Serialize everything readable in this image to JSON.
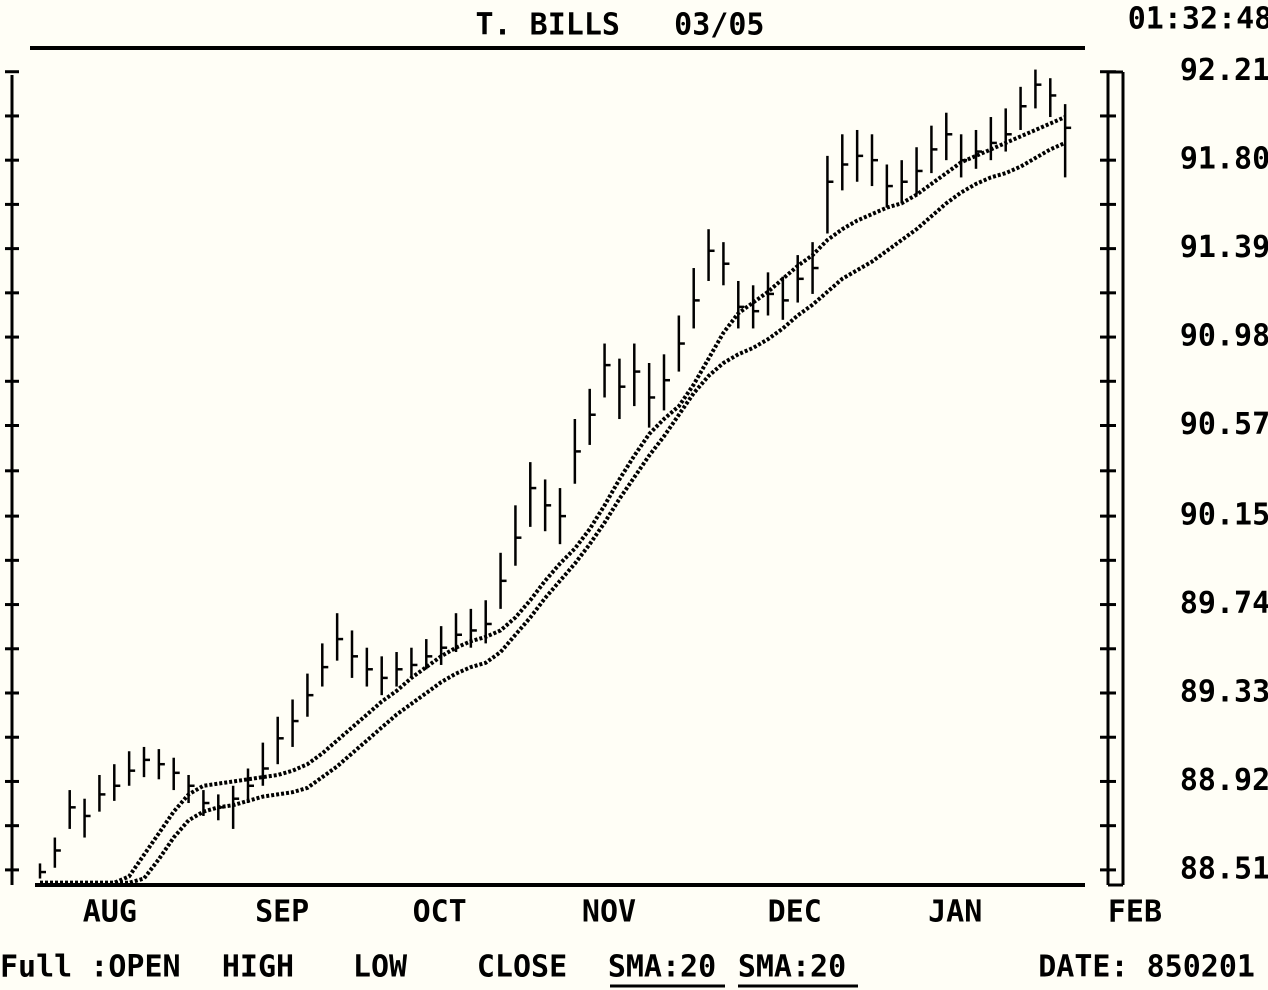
{
  "chart_data": {
    "type": "ohlc",
    "title": "T. BILLS   03/05",
    "time": "01:32:48",
    "footer_label": "Full :OPEN",
    "date_label": "DATE: 850201",
    "color": "#000000",
    "categories": [
      null,
      null,
      null,
      null,
      null,
      null,
      null,
      null,
      null,
      null,
      null,
      null,
      null,
      null,
      null,
      null,
      null,
      null,
      null,
      null,
      null,
      null,
      null,
      null,
      null,
      null,
      null,
      null,
      null,
      null,
      null,
      null,
      null,
      null,
      null,
      null,
      null,
      null,
      null,
      null,
      null,
      null,
      null,
      null,
      null,
      null,
      null,
      null,
      null,
      null,
      null,
      null,
      null,
      null,
      null,
      null,
      null,
      null,
      null,
      null,
      null,
      null,
      null,
      null,
      null,
      null,
      null,
      null,
      null,
      null
    ],
    "xlim": [
      0,
      70
    ],
    "xticks": [
      {
        "value": 4.7,
        "label": "AUG"
      },
      {
        "value": 16.3,
        "label": "SEP"
      },
      {
        "value": 26.9,
        "label": "OCT"
      },
      {
        "value": 38.3,
        "label": "NOV"
      },
      {
        "value": 50.8,
        "label": "DEC"
      },
      {
        "value": 61.6,
        "label": "JAN"
      },
      {
        "value": 73.7,
        "label": "FEB"
      }
    ],
    "ylim": [
      88.44,
      92.32
    ],
    "yticks": [
      88.51,
      88.92,
      89.33,
      89.74,
      90.15,
      90.57,
      90.98,
      91.39,
      {
        "value": 91.8,
        "label": "91.80"
      },
      92.21
    ],
    "series": [
      {
        "name": "HIGH",
        "values": [
          88.54,
          88.66,
          88.88,
          88.84,
          88.95,
          89.0,
          89.06,
          89.08,
          89.07,
          89.03,
          88.95,
          88.88,
          88.86,
          88.9,
          88.98,
          89.1,
          89.22,
          89.3,
          89.42,
          89.56,
          89.7,
          89.62,
          89.54,
          89.5,
          89.52,
          89.54,
          89.58,
          89.64,
          89.7,
          89.72,
          89.76,
          89.98,
          90.2,
          90.4,
          90.32,
          90.28,
          90.6,
          90.74,
          90.95,
          90.88,
          90.95,
          90.86,
          90.9,
          91.08,
          91.3,
          91.48,
          91.42,
          91.24,
          91.22,
          91.28,
          91.26,
          91.36,
          91.42,
          91.82,
          91.92,
          91.94,
          91.92,
          91.78,
          91.8,
          91.86,
          91.96,
          92.02,
          91.92,
          91.94,
          92.0,
          92.04,
          92.14,
          92.22,
          92.18,
          92.06
        ]
      },
      {
        "name": "LOW",
        "values": [
          88.47,
          88.52,
          88.7,
          88.66,
          88.78,
          88.83,
          88.9,
          88.94,
          88.93,
          88.88,
          88.82,
          88.76,
          88.74,
          88.7,
          88.82,
          88.9,
          89.0,
          89.08,
          89.22,
          89.36,
          89.48,
          89.4,
          89.36,
          89.32,
          89.36,
          89.4,
          89.44,
          89.46,
          89.52,
          89.54,
          89.56,
          89.72,
          89.92,
          90.1,
          90.08,
          90.02,
          90.3,
          90.48,
          90.7,
          90.6,
          90.66,
          90.56,
          90.64,
          90.82,
          91.02,
          91.24,
          91.22,
          91.02,
          91.02,
          91.08,
          91.06,
          91.14,
          91.18,
          91.46,
          91.66,
          91.7,
          91.68,
          91.58,
          91.6,
          91.64,
          91.74,
          91.8,
          91.72,
          91.76,
          91.8,
          91.84,
          91.94,
          92.04,
          92.0,
          91.72
        ]
      },
      {
        "name": "CLOSE",
        "values": [
          88.5,
          88.6,
          88.8,
          88.76,
          88.86,
          88.9,
          88.97,
          89.02,
          89.0,
          88.96,
          88.9,
          88.82,
          88.8,
          88.84,
          88.9,
          88.98,
          89.12,
          89.2,
          89.32,
          89.45,
          89.58,
          89.5,
          89.44,
          89.4,
          89.44,
          89.46,
          89.5,
          89.54,
          89.6,
          89.62,
          89.65,
          89.85,
          90.05,
          90.28,
          90.2,
          90.15,
          90.45,
          90.62,
          90.85,
          90.75,
          90.82,
          90.7,
          90.78,
          90.95,
          91.15,
          91.38,
          91.32,
          91.12,
          91.1,
          91.18,
          91.15,
          91.25,
          91.3,
          91.7,
          91.78,
          91.82,
          91.8,
          91.68,
          91.7,
          91.75,
          91.85,
          91.92,
          91.8,
          91.84,
          91.88,
          91.92,
          92.05,
          92.15,
          92.1,
          91.95
        ]
      },
      {
        "name": "SMA:20",
        "values": [
          88.45,
          88.45,
          88.45,
          88.45,
          88.45,
          88.45,
          88.48,
          88.58,
          88.68,
          88.78,
          88.86,
          88.9,
          88.91,
          88.92,
          88.93,
          88.94,
          88.95,
          88.97,
          89.0,
          89.05,
          89.11,
          89.17,
          89.23,
          89.29,
          89.34,
          89.4,
          89.45,
          89.5,
          89.54,
          89.57,
          89.59,
          89.62,
          89.68,
          89.76,
          89.85,
          89.93,
          90.0,
          90.09,
          90.2,
          90.32,
          90.43,
          90.53,
          90.6,
          90.66,
          90.76,
          90.88,
          91.0,
          91.09,
          91.14,
          91.19,
          91.25,
          91.31,
          91.36,
          91.43,
          91.48,
          91.52,
          91.55,
          91.58,
          91.6,
          91.64,
          91.69,
          91.74,
          91.79,
          91.82,
          91.85,
          91.88,
          91.91,
          91.94,
          91.97,
          92.0
        ]
      },
      {
        "name": "SMA:20",
        "values": [
          88.45,
          88.45,
          88.45,
          88.45,
          88.45,
          88.45,
          88.45,
          88.47,
          88.56,
          88.66,
          88.74,
          88.78,
          88.8,
          88.81,
          88.83,
          88.85,
          88.86,
          88.87,
          88.89,
          88.94,
          88.99,
          89.05,
          89.11,
          89.17,
          89.23,
          89.28,
          89.33,
          89.38,
          89.42,
          89.45,
          89.47,
          89.52,
          89.6,
          89.68,
          89.77,
          89.85,
          89.93,
          90.02,
          90.12,
          90.23,
          90.33,
          90.43,
          90.52,
          90.62,
          90.72,
          90.8,
          90.86,
          90.9,
          90.93,
          90.97,
          91.02,
          91.08,
          91.13,
          91.19,
          91.25,
          91.29,
          91.33,
          91.38,
          91.43,
          91.48,
          91.54,
          91.6,
          91.65,
          91.69,
          91.72,
          91.74,
          91.77,
          91.81,
          91.85,
          91.88
        ]
      }
    ]
  }
}
